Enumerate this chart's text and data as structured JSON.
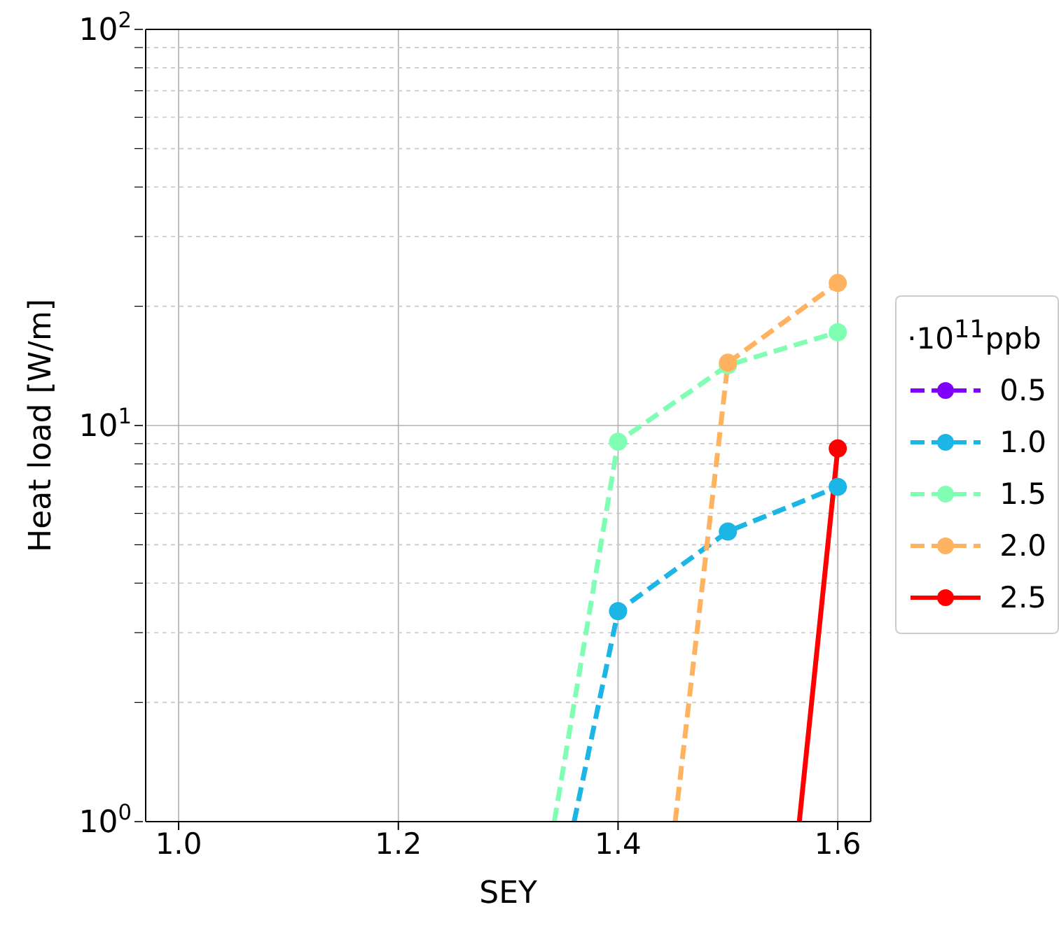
{
  "chart_data": {
    "type": "line",
    "xlabel": "SEY",
    "ylabel": "Heat load [W/m]",
    "legend_title": "·10$^{11}$ppb",
    "log": "y",
    "grid": true,
    "legend": "right",
    "marker": "circle",
    "xlim": [
      0.97,
      1.63
    ],
    "xticks": [
      {
        "value": 1.0,
        "label": "1.0"
      },
      {
        "value": 1.2,
        "label": "1.2"
      },
      {
        "value": 1.4,
        "label": "1.4"
      },
      {
        "value": 1.6,
        "label": "1.6"
      }
    ],
    "ylim": [
      1,
      100
    ],
    "yticks": [
      {
        "value": 1,
        "label": "10$^{0}$"
      },
      {
        "value": 2,
        "label": null
      },
      {
        "value": 3,
        "label": null
      },
      {
        "value": 4,
        "label": null
      },
      {
        "value": 5,
        "label": null
      },
      {
        "value": 6,
        "label": null
      },
      {
        "value": 7,
        "label": null
      },
      {
        "value": 8,
        "label": null
      },
      {
        "value": 9,
        "label": null
      },
      {
        "value": 10,
        "label": "10$^{1}$"
      },
      {
        "value": 20,
        "label": null
      },
      {
        "value": 30,
        "label": null
      },
      {
        "value": 40,
        "label": null
      },
      {
        "value": 50,
        "label": null
      },
      {
        "value": 60,
        "label": null
      },
      {
        "value": 70,
        "label": null
      },
      {
        "value": 80,
        "label": null
      },
      {
        "value": 90,
        "label": null
      },
      {
        "value": 100,
        "label": "10$^{2}$"
      }
    ],
    "series": [
      {
        "name": "0.5",
        "color": "#8000ff",
        "line_style": "dashed"
      },
      {
        "name": "1.0",
        "color": "#1cb6e6",
        "line_style": "dashed",
        "x": [
          1.36,
          1.4,
          1.5,
          1.6
        ],
        "values": [
          1,
          3.4,
          5.4,
          7.0
        ]
      },
      {
        "name": "1.5",
        "color": "#80ffb4",
        "line_style": "dashed",
        "x": [
          1.342,
          1.4,
          1.5,
          1.6
        ],
        "values": [
          1,
          9.1,
          14.2,
          17.2
        ]
      },
      {
        "name": "2.0",
        "color": "#ffb360",
        "line_style": "dashed",
        "x": [
          1.452,
          1.5,
          1.6
        ],
        "values": [
          1,
          14.4,
          22.9
        ]
      },
      {
        "name": "2.5",
        "color": "#ff0000",
        "line_style": "solid",
        "x": [
          1.565,
          1.6
        ],
        "values": [
          1,
          8.75
        ]
      }
    ]
  }
}
